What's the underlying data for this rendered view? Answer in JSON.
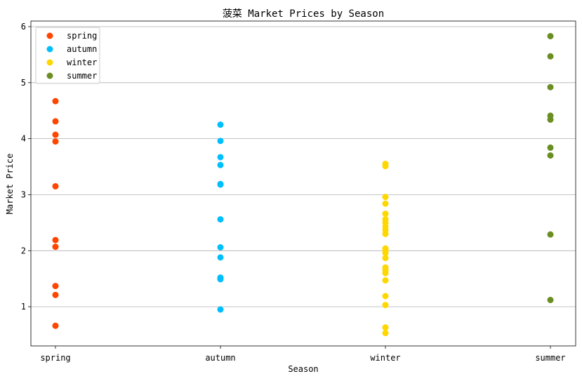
{
  "chart_data": {
    "type": "scatter",
    "title": "菠菜 Market Prices by Season",
    "xlabel": "Season",
    "ylabel": "Market Price",
    "categories": [
      "spring",
      "autumn",
      "winter",
      "summer"
    ],
    "y_ticks": [
      "1",
      "2",
      "3",
      "4",
      "5",
      "6"
    ],
    "ylim": [
      0.3,
      6.1
    ],
    "grid": "horizontal",
    "legend_position": "top-left",
    "series": [
      {
        "name": "spring",
        "category": "spring",
        "color": "#ff4500",
        "values": [
          4.67,
          4.31,
          4.07,
          3.95,
          3.15,
          2.19,
          2.07,
          1.37,
          1.21,
          0.66
        ]
      },
      {
        "name": "autumn",
        "category": "autumn",
        "color": "#00bfff",
        "values": [
          4.25,
          3.96,
          3.67,
          3.53,
          3.19,
          3.18,
          2.56,
          2.06,
          1.88,
          1.52,
          1.49,
          0.95
        ]
      },
      {
        "name": "winter",
        "category": "winter",
        "color": "#ffd700",
        "values": [
          3.55,
          3.51,
          2.96,
          2.84,
          2.66,
          2.56,
          2.5,
          2.43,
          2.37,
          2.3,
          2.04,
          2.0,
          1.96,
          1.87,
          1.7,
          1.65,
          1.6,
          1.47,
          1.19,
          1.03,
          0.63,
          0.53
        ]
      },
      {
        "name": "summer",
        "category": "summer",
        "color": "#6b8e23",
        "values": [
          5.83,
          5.47,
          4.92,
          4.41,
          4.34,
          3.84,
          3.7,
          2.29,
          1.12
        ]
      }
    ]
  }
}
